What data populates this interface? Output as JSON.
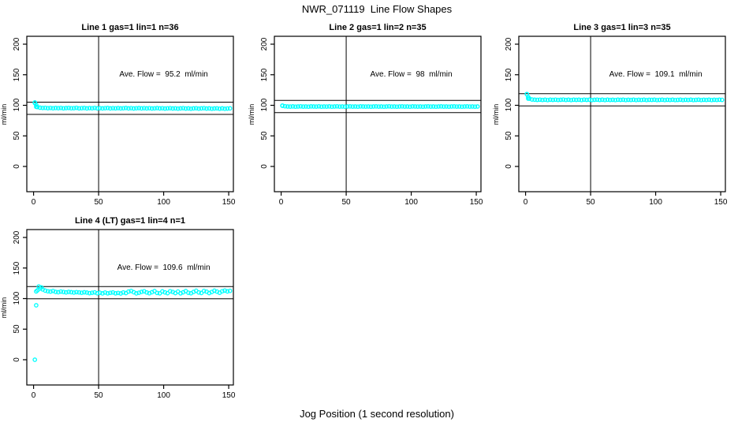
{
  "figure_title": "NWR_071119  Line Flow Shapes",
  "x_axis_label": "Jog Position (1 second resolution)",
  "y_axis_label": "ml/min",
  "point_color": "#00FFFF",
  "line_color": "#000000",
  "background_color": "#FFFFFF",
  "chart_data": [
    {
      "type": "scatter",
      "title": "Line 1 gas=1 lin=1 n=36",
      "annotation": "Ave. Flow =  95.2  ml/min",
      "ave_flow": 95.2,
      "ylabel": "ml/min",
      "xticks": [
        0,
        50,
        100,
        150
      ],
      "yticks": [
        0,
        50,
        100,
        150,
        200
      ],
      "xlim": [
        -5.2,
        153.6
      ],
      "ylim": [
        -41.3,
        212.9
      ],
      "grid": false,
      "vline_x": 50,
      "hlines": [
        105.2,
        85.2
      ],
      "band": {
        "x_start": 1,
        "x_step": 2,
        "y": [
          103.8,
          97.2,
          96.1,
          95.7,
          95.9,
          95.4,
          95.8,
          95.2,
          95.6,
          95.3,
          95.7,
          95.1,
          95.5,
          95.8,
          95.2,
          95.4,
          95.9,
          95.1,
          95.3,
          95.6,
          95.0,
          95.5,
          95.2,
          95.7,
          95.1,
          95.4,
          94.9,
          95.3,
          95.6,
          95.0,
          95.4,
          95.1,
          95.5,
          94.9,
          95.2,
          95.6,
          95.0,
          95.3,
          94.8,
          95.2,
          95.5,
          94.9,
          95.3,
          95.0,
          95.4,
          94.8,
          95.1,
          95.5,
          94.9,
          95.2,
          94.7,
          95.1,
          95.4,
          94.8,
          95.1,
          94.6,
          95.0,
          95.3,
          94.7,
          95.0,
          94.5,
          94.9,
          95.2,
          94.6,
          94.9,
          95.3,
          94.7,
          95.0,
          94.4,
          94.8,
          95.1,
          94.5,
          94.9,
          94.3,
          94.7,
          95.0
        ]
      },
      "extra_points": [
        [
          1,
          104.6
        ],
        [
          2,
          100.8
        ],
        [
          2,
          97.5
        ]
      ]
    },
    {
      "type": "scatter",
      "title": "Line 2 gas=1 lin=2 n=35",
      "annotation": "Ave. Flow =  98  ml/min",
      "ave_flow": 98,
      "ylabel": "ml/min",
      "xticks": [
        0,
        50,
        100,
        150
      ],
      "yticks": [
        0,
        50,
        100,
        150,
        200
      ],
      "xlim": [
        -5.2,
        153.6
      ],
      "ylim": [
        -41.3,
        212.9
      ],
      "grid": false,
      "vline_x": 50,
      "hlines": [
        108,
        88
      ],
      "band": {
        "x_start": 1,
        "x_step": 2,
        "y": [
          99.2,
          98.4,
          98.1,
          97.9,
          98.2,
          97.8,
          98.0,
          98.3,
          97.9,
          98.1,
          97.8,
          98.2,
          98.0,
          97.9,
          98.3,
          97.8,
          98.1,
          97.9,
          98.2,
          97.8,
          98.0,
          98.3,
          97.9,
          98.1,
          97.8,
          98.0,
          98.2,
          97.9,
          98.1,
          97.8,
          98.2,
          98.0,
          97.9,
          98.1,
          97.8,
          98.0,
          98.2,
          97.9,
          98.1,
          97.8,
          98.0,
          98.3,
          97.9,
          98.1,
          97.8,
          98.0,
          98.2,
          97.9,
          98.1,
          97.8,
          98.2,
          98.0,
          97.9,
          98.1,
          97.8,
          98.0,
          98.2,
          97.9,
          98.1,
          97.8,
          98.0,
          98.2,
          97.9,
          98.1,
          97.8,
          98.0,
          98.2,
          97.9,
          98.1,
          97.8,
          98.0,
          98.2,
          97.9,
          98.1,
          97.8,
          98.0
        ]
      },
      "extra_points": [
        [
          1,
          99.6
        ]
      ]
    },
    {
      "type": "scatter",
      "title": "Line 3 gas=1 lin=3 n=35",
      "annotation": "Ave. Flow =  109.1  ml/min",
      "ave_flow": 109.1,
      "ylabel": "ml/min",
      "xticks": [
        0,
        50,
        100,
        150
      ],
      "yticks": [
        0,
        50,
        100,
        150,
        200
      ],
      "xlim": [
        -5.2,
        153.6
      ],
      "ylim": [
        -41.3,
        212.9
      ],
      "grid": false,
      "vline_x": 50,
      "hlines": [
        119.1,
        99.1
      ],
      "band": {
        "x_start": 1,
        "x_step": 2,
        "y": [
          118.0,
          111.0,
          109.6,
          109.2,
          108.9,
          109.3,
          108.8,
          109.1,
          108.7,
          109.2,
          108.9,
          109.3,
          108.8,
          109.0,
          109.4,
          108.8,
          109.1,
          108.7,
          109.2,
          108.9,
          109.1,
          108.7,
          109.3,
          108.9,
          109.1,
          108.6,
          109.0,
          109.3,
          108.8,
          109.1,
          108.7,
          109.2,
          108.8,
          109.0,
          108.6,
          109.1,
          108.9,
          109.2,
          108.7,
          109.0,
          108.8,
          109.2,
          108.6,
          109.0,
          108.8,
          109.1,
          108.7,
          109.0,
          108.9,
          109.2,
          108.6,
          108.9,
          109.1,
          108.7,
          109.0,
          108.8,
          109.1,
          108.6,
          108.9,
          109.2,
          108.7,
          109.0,
          108.8,
          109.1,
          108.7,
          108.9,
          109.2,
          108.6,
          109.0,
          108.8,
          109.1,
          108.7,
          109.0,
          108.8,
          109.1,
          108.9
        ]
      },
      "extra_points": [
        [
          1,
          118.5
        ],
        [
          2,
          113.5
        ],
        [
          2,
          111.0
        ]
      ]
    },
    {
      "type": "scatter",
      "title": "Line 4 (LT) gas=1 lin=4 n=1",
      "annotation": "Ave. Flow =  109.6  ml/min",
      "ave_flow": 109.6,
      "ylabel": "ml/min",
      "xticks": [
        0,
        50,
        100,
        150
      ],
      "yticks": [
        0,
        50,
        100,
        150,
        200
      ],
      "xlim": [
        -5.2,
        153.6
      ],
      "ylim": [
        -41.3,
        212.9
      ],
      "grid": false,
      "vline_x": 50,
      "hlines": [
        119.6,
        99.6
      ],
      "band": {
        "x_start": 3,
        "x_step": 2,
        "y": [
          113.5,
          116.5,
          115.0,
          113.0,
          112.0,
          111.5,
          112.5,
          111.0,
          110.5,
          111.5,
          110.8,
          110.2,
          111.0,
          110.5,
          109.8,
          110.6,
          110.0,
          109.5,
          110.3,
          109.8,
          108.9,
          109.5,
          110.2,
          108.8,
          109.6,
          108.5,
          109.9,
          108.7,
          109.4,
          110.1,
          108.6,
          109.3,
          108.4,
          110.0,
          109.0,
          111.5,
          112.5,
          110.5,
          108.5,
          109.5,
          111.0,
          112.0,
          110.0,
          108.8,
          110.5,
          112.2,
          109.3,
          108.6,
          111.8,
          110.2,
          108.9,
          112.0,
          110.8,
          109.0,
          111.5,
          108.7,
          110.3,
          112.3,
          109.5,
          108.8,
          111.0,
          112.8,
          110.0,
          109.2,
          112.5,
          111.3,
          109.0,
          110.8,
          112.9,
          111.5,
          109.5,
          112.0,
          113.2,
          111.8,
          112.6
        ]
      },
      "extra_points": [
        [
          1,
          0
        ],
        [
          2,
          89
        ],
        [
          2,
          111.8
        ],
        [
          4,
          119.8
        ],
        [
          6,
          118.2
        ]
      ]
    }
  ]
}
